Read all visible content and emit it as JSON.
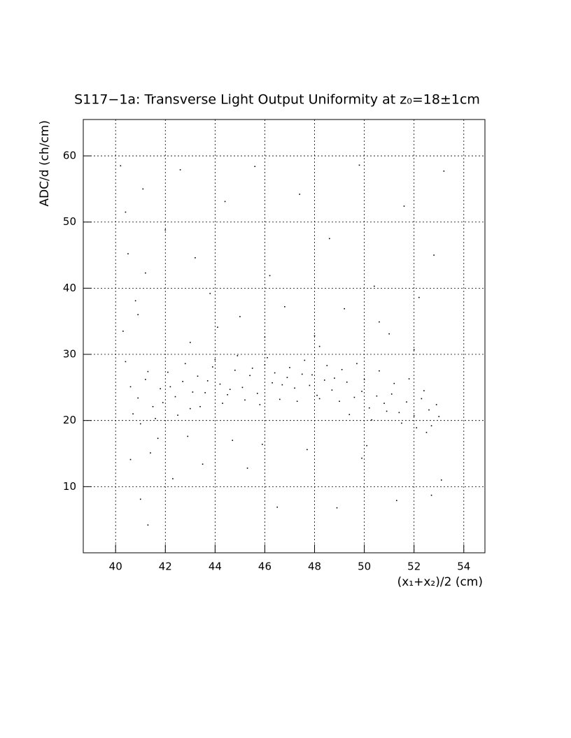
{
  "chart_data": {
    "type": "scatter",
    "title": "S117−1a: Transverse Light Output Uniformity at z₀=18±1cm",
    "x_label": "(x₁+x₂)/2 (cm)",
    "y_label": "ADC/d (ch/cm)",
    "color": "#000000",
    "grid": true,
    "xlim": [
      38.7,
      54.85
    ],
    "ylim": [
      0,
      65.5
    ],
    "xticks": [
      40,
      42,
      44,
      46,
      48,
      50,
      52,
      54
    ],
    "yticks": [
      10,
      20,
      30,
      40,
      50,
      60
    ],
    "x": [
      40.6,
      40.9,
      41.2,
      41.5,
      41.8,
      42.1,
      42.4,
      42.7,
      43.0,
      43.3,
      43.6,
      43.9,
      44.2,
      44.5,
      44.8,
      45.1,
      45.4,
      45.7,
      46.0,
      46.3,
      46.6,
      46.9,
      47.2,
      47.5,
      47.8,
      48.1,
      48.4,
      48.7,
      49.0,
      49.3,
      49.6,
      49.9,
      50.2,
      50.5,
      50.8,
      51.1,
      51.4,
      51.7,
      52.0,
      52.3,
      52.6,
      52.9,
      40.4,
      40.7,
      41.0,
      41.3,
      41.6,
      41.9,
      42.2,
      42.5,
      42.8,
      43.1,
      43.4,
      43.7,
      44.0,
      44.3,
      44.6,
      44.9,
      45.2,
      45.5,
      45.8,
      46.1,
      46.4,
      46.7,
      47.0,
      47.3,
      47.6,
      47.9,
      48.2,
      48.5,
      48.8,
      49.1,
      49.4,
      49.7,
      50.0,
      50.3,
      50.6,
      50.9,
      51.2,
      51.5,
      51.8,
      52.1,
      52.4,
      52.7,
      53.0,
      40.2,
      40.5,
      40.8,
      41.1,
      40.3,
      41.4,
      42.0,
      42.6,
      43.2,
      43.8,
      44.4,
      45.0,
      45.6,
      46.2,
      46.8,
      47.4,
      48.0,
      48.6,
      49.2,
      49.8,
      50.4,
      51.0,
      51.6,
      52.2,
      52.8,
      53.2,
      40.6,
      41.0,
      41.7,
      42.3,
      43.5,
      44.7,
      45.3,
      46.5,
      47.7,
      48.9,
      50.1,
      51.3,
      52.5,
      53.1,
      40.9,
      41.2,
      43.0,
      44.1,
      46.0,
      48.2,
      50.6,
      52.0,
      42.9,
      45.9,
      49.9,
      52.7,
      40.4,
      41.3
    ],
    "values": [
      25.1,
      23.4,
      26.2,
      22.1,
      24.8,
      27.3,
      23.6,
      25.9,
      21.8,
      26.7,
      24.2,
      28.1,
      25.5,
      23.9,
      27.6,
      25.0,
      26.8,
      24.1,
      28.4,
      25.7,
      23.2,
      26.5,
      24.9,
      27.0,
      25.3,
      23.8,
      26.1,
      24.6,
      22.9,
      25.8,
      23.5,
      24.4,
      21.9,
      23.7,
      22.6,
      24.0,
      21.2,
      22.8,
      20.7,
      23.3,
      21.6,
      22.4,
      28.9,
      21.0,
      19.5,
      27.4,
      20.3,
      22.7,
      25.1,
      20.8,
      28.6,
      24.3,
      22.1,
      26.0,
      29.2,
      22.6,
      24.7,
      29.8,
      23.1,
      27.9,
      22.4,
      29.5,
      27.2,
      25.4,
      28.0,
      22.9,
      29.1,
      26.9,
      23.3,
      28.3,
      26.4,
      27.7,
      20.9,
      28.6,
      26.2,
      20.1,
      27.5,
      21.4,
      25.6,
      19.6,
      26.3,
      18.9,
      24.5,
      19.2,
      20.6,
      58.5,
      45.2,
      38.1,
      55.0,
      33.5,
      15.1,
      48.8,
      57.9,
      44.6,
      39.2,
      53.1,
      35.7,
      58.4,
      41.9,
      37.2,
      54.2,
      32.8,
      47.5,
      36.9,
      58.6,
      40.3,
      33.1,
      52.4,
      38.6,
      45.0,
      57.7,
      14.1,
      8.1,
      17.3,
      11.2,
      13.4,
      17.0,
      12.8,
      6.9,
      15.6,
      6.8,
      16.2,
      7.9,
      18.2,
      11.0,
      36.0,
      42.3,
      31.8,
      34.1,
      32.6,
      31.2,
      34.9,
      30.7,
      17.6,
      16.4,
      14.3,
      8.7,
      51.5,
      4.2
    ]
  }
}
